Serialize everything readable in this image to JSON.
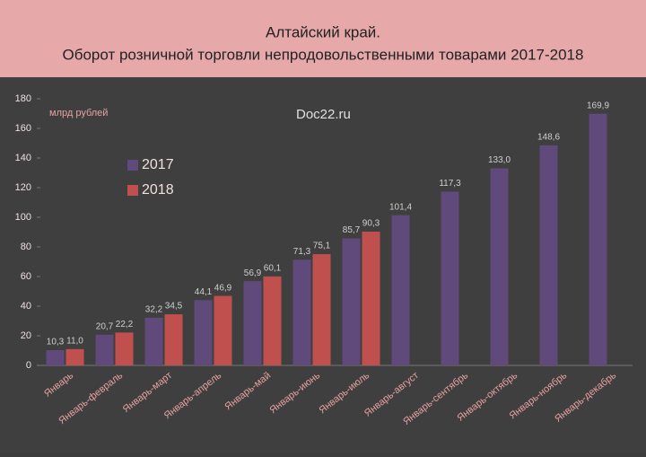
{
  "chart_data": {
    "type": "bar",
    "title": "Алтайский край.",
    "subtitle": "Оборот розничной торговли непродовольственными товарами 2017-2018",
    "y_label": "млрд рублей",
    "annotation": "Doc22.ru",
    "categories": [
      "Январь",
      "Январь-февраль",
      "Январь-март",
      "Январь-апрель",
      "Январь-май",
      "Январь-июнь",
      "Январь-июль",
      "Январь-август",
      "Январь-сентябрь",
      "Январь-октябрь",
      "Январь-ноябрь",
      "Январь-декабрь"
    ],
    "series": [
      {
        "name": "2017",
        "color": "#604a7b",
        "values": [
          10.3,
          20.7,
          32.2,
          44.1,
          56.9,
          71.3,
          85.7,
          101.4,
          117.3,
          133.0,
          148.6,
          169.9
        ],
        "value_labels": [
          "10,3",
          "20,7",
          "32,2",
          "44,1",
          "56,9",
          "71,3",
          "85,7",
          "101,4",
          "117,3",
          "133,0",
          "148,6",
          "169,9"
        ]
      },
      {
        "name": "2018",
        "color": "#c0504d",
        "values": [
          11.0,
          22.2,
          34.5,
          46.9,
          60.1,
          75.1,
          90.3,
          null,
          null,
          null,
          null,
          null
        ],
        "value_labels": [
          "11,0",
          "22,2",
          "34,5",
          "46,9",
          "60,1",
          "75,1",
          "90,3",
          null,
          null,
          null,
          null,
          null
        ]
      }
    ],
    "ylim": [
      0,
      180
    ],
    "yticks": [
      0,
      20,
      40,
      60,
      80,
      100,
      120,
      140,
      160,
      180
    ],
    "grid": false
  }
}
